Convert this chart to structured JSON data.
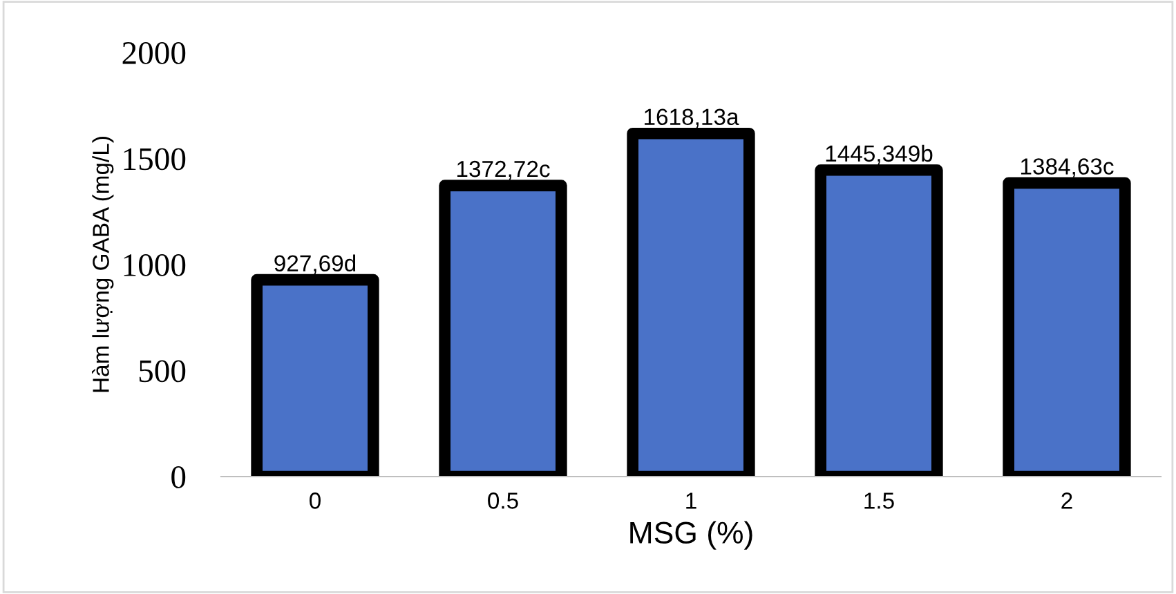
{
  "chart_data": {
    "type": "bar",
    "xlabel": "MSG (%)",
    "ylabel": "Hàm lượng GABA (mg/L)",
    "categories": [
      "0",
      "0.5",
      "1",
      "1.5",
      "2"
    ],
    "values": [
      927.69,
      1372.72,
      1618.13,
      1445.349,
      1384.63
    ],
    "value_labels": [
      "927,69d",
      "1372,72c",
      "1618,13a",
      "1445,349b",
      "1384,63c"
    ],
    "color": "#4a72c8",
    "ylim": [
      0,
      2000
    ],
    "yticks": [
      0,
      500,
      1000,
      1500,
      2000
    ],
    "grid": false,
    "legend": false
  }
}
